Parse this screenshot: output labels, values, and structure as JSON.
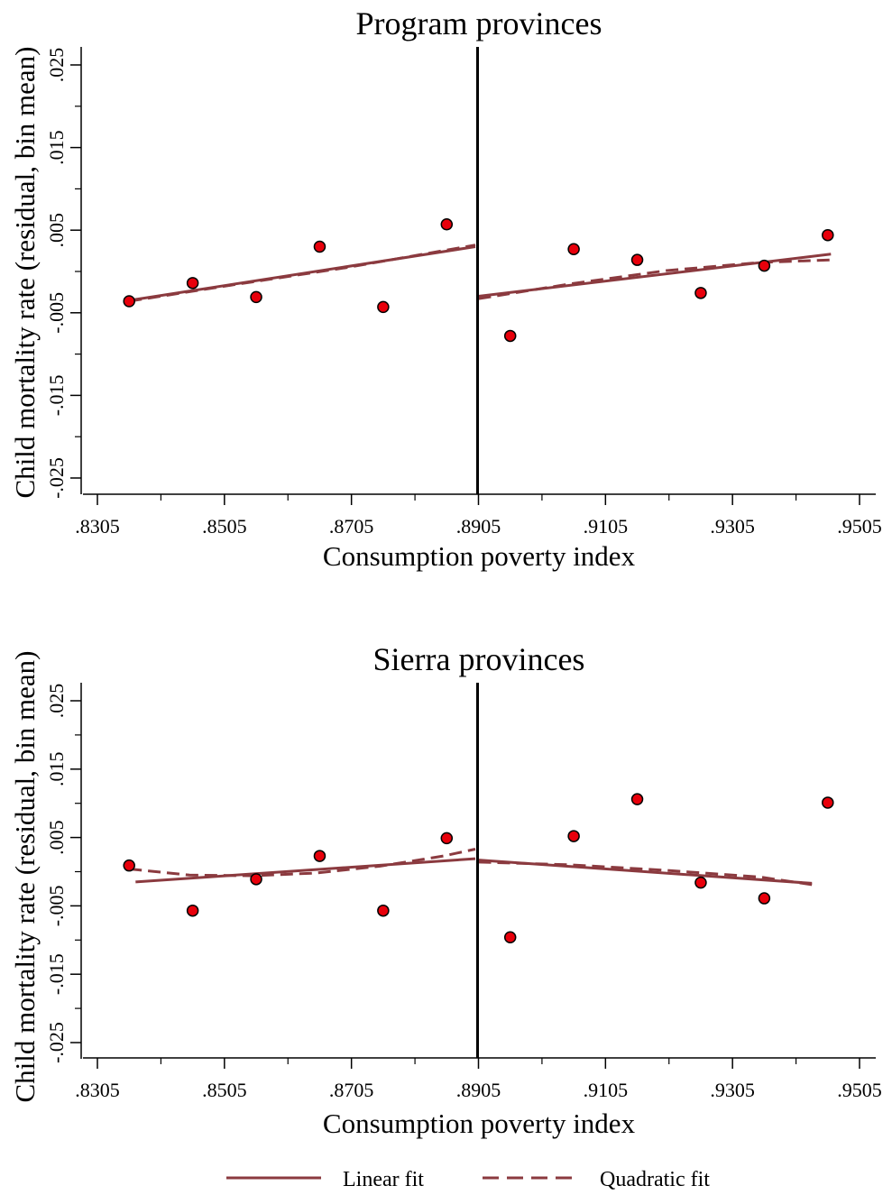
{
  "legend": {
    "placement": "bottom-center",
    "items": [
      {
        "label": "Linear fit",
        "style": "solid",
        "color": "#8b3a3f"
      },
      {
        "label": "Quadratic fit",
        "style": "dashed",
        "color": "#8b3a3f"
      }
    ]
  },
  "colors": {
    "fit_line": "#8b3a3f",
    "point_fill": "#e8000b",
    "point_stroke": "#000000",
    "cutoff_line": "#000000"
  },
  "chart_data": [
    {
      "type": "scatter",
      "title": "Program provinces",
      "xlabel": "Consumption poverty index",
      "ylabel": "Child mortality rate (residual, bin mean)",
      "xlim": [
        0.8305,
        0.9505
      ],
      "ylim": [
        -0.025,
        0.025
      ],
      "x_ticks": [
        ".8305",
        ".8505",
        ".8705",
        ".8905",
        ".9105",
        ".9305",
        ".9505"
      ],
      "y_ticks": [
        "-.025",
        "-.015",
        "-.005",
        ".005",
        ".015",
        ".025"
      ],
      "cutoff": 0.8905,
      "grid": false,
      "points": [
        {
          "x": 0.8355,
          "y": -0.0036
        },
        {
          "x": 0.8455,
          "y": -0.0014
        },
        {
          "x": 0.8555,
          "y": -0.0031
        },
        {
          "x": 0.8655,
          "y": 0.003
        },
        {
          "x": 0.8755,
          "y": -0.0043
        },
        {
          "x": 0.8855,
          "y": 0.0057
        },
        {
          "x": 0.8955,
          "y": -0.0078
        },
        {
          "x": 0.9055,
          "y": 0.0027
        },
        {
          "x": 0.9155,
          "y": 0.0014
        },
        {
          "x": 0.9255,
          "y": -0.0026
        },
        {
          "x": 0.9355,
          "y": 0.0007
        },
        {
          "x": 0.9455,
          "y": 0.0044
        }
      ],
      "fits": [
        {
          "name": "Linear fit",
          "style": "solid",
          "segments": [
            {
              "x": [
                0.8355,
                0.89
              ],
              "y": [
                -0.0035,
                0.003
              ]
            },
            {
              "x": [
                0.8905,
                0.946
              ],
              "y": [
                -0.003,
                0.0021
              ]
            }
          ]
        },
        {
          "name": "Quadratic fit",
          "style": "dashed",
          "segments": [
            {
              "x": [
                0.8355,
                0.852,
                0.87,
                0.89
              ],
              "y": [
                -0.0036,
                -0.0016,
                0.0005,
                0.0032
              ]
            },
            {
              "x": [
                0.8905,
                0.905,
                0.92,
                0.935,
                0.946
              ],
              "y": [
                -0.0033,
                -0.0015,
                0.0001,
                0.0011,
                0.0014
              ]
            }
          ]
        }
      ]
    },
    {
      "type": "scatter",
      "title": "Sierra provinces",
      "xlabel": "Consumption poverty index",
      "ylabel": "Child mortality rate (residual, bin mean)",
      "xlim": [
        0.8305,
        0.9505
      ],
      "ylim": [
        -0.025,
        0.025
      ],
      "x_ticks": [
        ".8305",
        ".8505",
        ".8705",
        ".8905",
        ".9105",
        ".9305",
        ".9505"
      ],
      "y_ticks": [
        "-.025",
        "-.015",
        "-.005",
        ".005",
        ".015",
        ".025"
      ],
      "cutoff": 0.8905,
      "grid": false,
      "points": [
        {
          "x": 0.8355,
          "y": 0.0009
        },
        {
          "x": 0.8455,
          "y": -0.0057
        },
        {
          "x": 0.8555,
          "y": -0.0011
        },
        {
          "x": 0.8655,
          "y": 0.0023
        },
        {
          "x": 0.8755,
          "y": -0.0057
        },
        {
          "x": 0.8855,
          "y": 0.0049
        },
        {
          "x": 0.8955,
          "y": -0.0096
        },
        {
          "x": 0.9055,
          "y": 0.0052
        },
        {
          "x": 0.9155,
          "y": 0.0106
        },
        {
          "x": 0.9255,
          "y": -0.0016
        },
        {
          "x": 0.9355,
          "y": -0.0039
        },
        {
          "x": 0.9455,
          "y": 0.0101
        }
      ],
      "fits": [
        {
          "name": "Linear fit",
          "style": "solid",
          "segments": [
            {
              "x": [
                0.8365,
                0.89
              ],
              "y": [
                -0.0015,
                0.0019
              ]
            },
            {
              "x": [
                0.8905,
                0.943
              ],
              "y": [
                0.0017,
                -0.0017
              ]
            }
          ]
        },
        {
          "name": "Quadratic fit",
          "style": "dashed",
          "segments": [
            {
              "x": [
                0.8355,
                0.845,
                0.855,
                0.865,
                0.875,
                0.885,
                0.89
              ],
              "y": [
                0.0004,
                -0.0005,
                -0.0006,
                -0.0002,
                0.0008,
                0.0023,
                0.0033
              ]
            },
            {
              "x": [
                0.8905,
                0.905,
                0.92,
                0.935,
                0.943
              ],
              "y": [
                0.0014,
                0.001,
                0.0002,
                -0.0008,
                -0.0019
              ]
            }
          ]
        }
      ]
    }
  ]
}
